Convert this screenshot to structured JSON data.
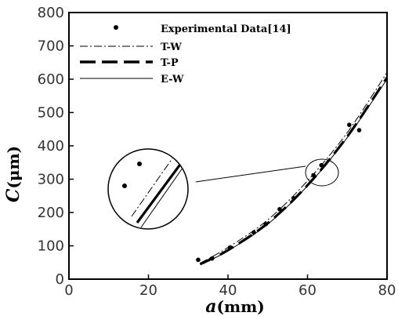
{
  "chart_data": {
    "type": "line",
    "xlabel_var": "a",
    "xlabel_unit": "(mm)",
    "ylabel_var": "C",
    "ylabel_unit": "(μm)",
    "xlim": [
      0,
      80
    ],
    "ylim": [
      0,
      800
    ],
    "xticks": [
      0,
      20,
      40,
      60,
      80
    ],
    "yticks": [
      0,
      100,
      200,
      300,
      400,
      500,
      600,
      700,
      800
    ],
    "grid": false,
    "legend_position": "top-left",
    "series": [
      {
        "name": "Experimental Data[14]",
        "kind": "scatter",
        "x": [
          32.5,
          36,
          40.5,
          46.5,
          49.5,
          53,
          56.5,
          61.5,
          63.5,
          70.5,
          73
        ],
        "y": [
          58,
          62,
          95,
          140,
          165,
          210,
          243,
          312,
          342,
          463,
          447
        ]
      },
      {
        "name": "T-W",
        "kind": "line",
        "style": "dash-dot",
        "x": [
          33,
          40,
          50,
          60,
          70,
          80
        ],
        "y": [
          48,
          95,
          178,
          295,
          440,
          620
        ]
      },
      {
        "name": "T-P",
        "kind": "line",
        "style": "long-dash",
        "x": [
          33,
          40,
          50,
          60,
          70,
          80
        ],
        "y": [
          45,
          87,
          168,
          282,
          428,
          605
        ]
      },
      {
        "name": "E-W",
        "kind": "line",
        "style": "solid",
        "x": [
          33,
          40,
          50,
          60,
          70,
          80
        ],
        "y": [
          43,
          85,
          165,
          280,
          425,
          600
        ]
      }
    ]
  }
}
